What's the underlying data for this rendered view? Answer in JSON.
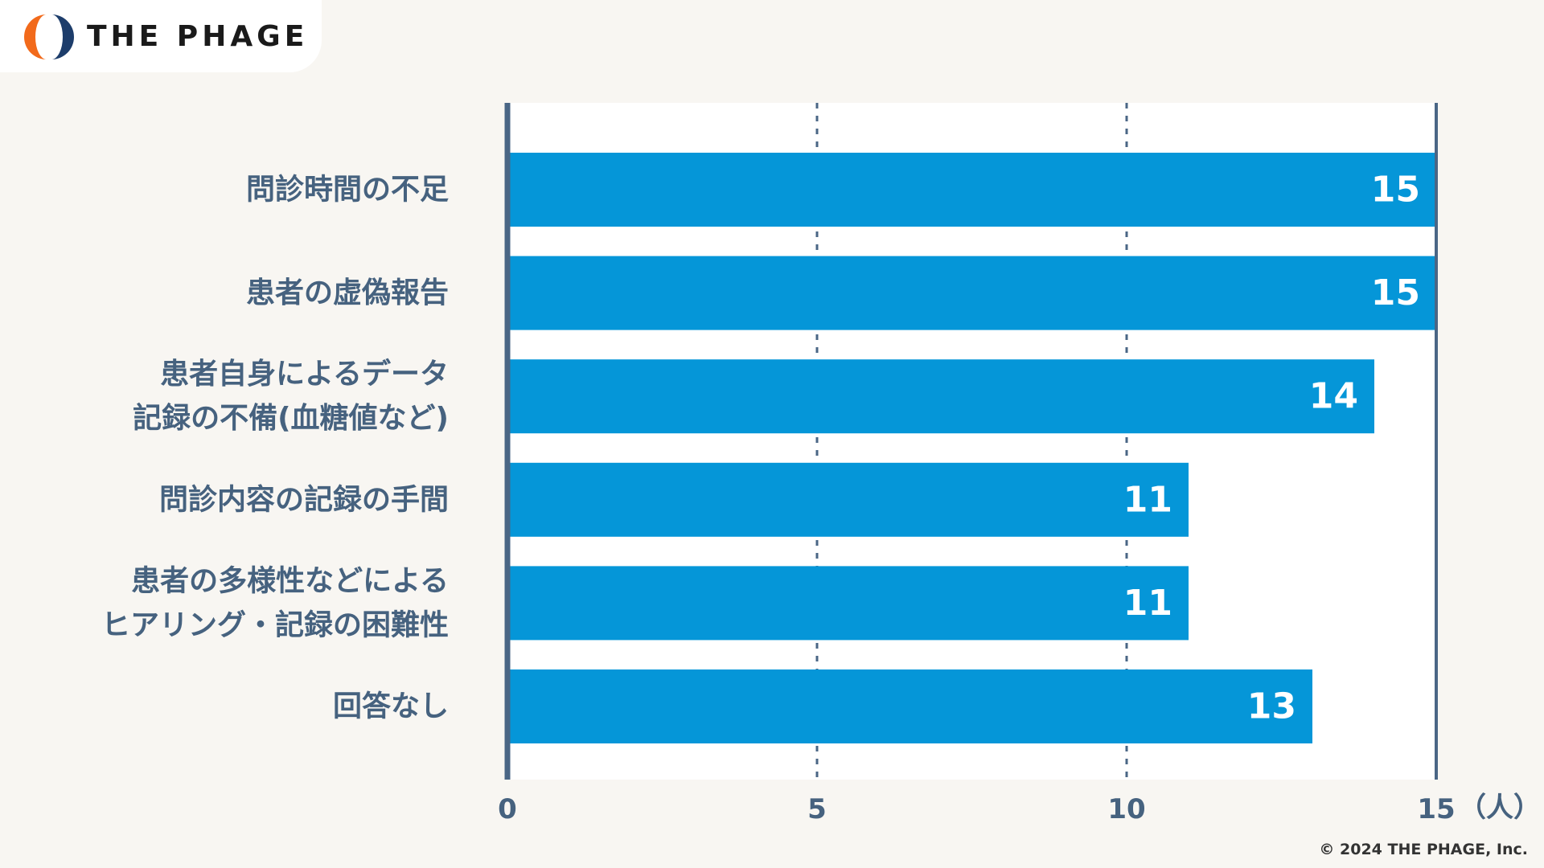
{
  "brand": {
    "name": "THE PHAGE",
    "copyright": "© 2024 THE PHAGE, Inc."
  },
  "colors": {
    "background": "#f8f6f2",
    "plot_background": "#ffffff",
    "bar": "#0596d8",
    "axis": "#4a6685",
    "label_text": "#46627f",
    "value_text": "#ffffff",
    "logo_orange": "#f26a1b",
    "logo_navy": "#1d3d6b"
  },
  "chart_data": {
    "type": "bar",
    "orientation": "horizontal",
    "categories": [
      [
        "問診時間の不足"
      ],
      [
        "患者の虚偽報告"
      ],
      [
        "患者自身によるデータ",
        "記録の不備(血糖値など)"
      ],
      [
        "問診内容の記録の手間"
      ],
      [
        "患者の多様性などによる",
        "ヒアリング・記録の困難性"
      ],
      [
        "回答なし"
      ]
    ],
    "values": [
      15,
      15,
      14,
      11,
      11,
      13
    ],
    "value_labels": [
      "15",
      "15",
      "14",
      "11",
      "11",
      "13"
    ],
    "xlim": [
      0,
      15
    ],
    "xticks": [
      0,
      5,
      10,
      15
    ],
    "xtick_labels": [
      "0",
      "5",
      "10",
      "15"
    ],
    "x_unit": "（人）",
    "grid": "dashed vertical at 5 and 10",
    "legend": "none"
  }
}
